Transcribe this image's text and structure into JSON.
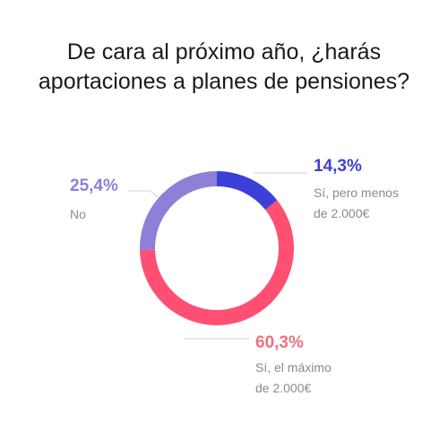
{
  "title_lines": [
    "De cara al próximo año, ¿harás",
    "aportaciones a planes de pensiones?"
  ],
  "chart_data": {
    "type": "pie",
    "donut": true,
    "title": "De cara al próximo año, ¿harás aportaciones a planes de pensiones?",
    "slices": [
      {
        "label_lines": [
          "Sí, pero menos",
          "de 2.000€"
        ],
        "value": 14.3,
        "display": "14,3%",
        "color": "#3d3fd6",
        "label_color": "#3d3fd6"
      },
      {
        "label_lines": [
          "Sí, el máximo",
          "de 2.000€"
        ],
        "value": 60.3,
        "display": "60,3%",
        "color": "#ff4f72",
        "label_color": "#f0707e"
      },
      {
        "label_lines": [
          "No"
        ],
        "value": 25.4,
        "display": "25,4%",
        "color": "#8f7fd9",
        "label_color": "#8f7fd9"
      }
    ]
  }
}
